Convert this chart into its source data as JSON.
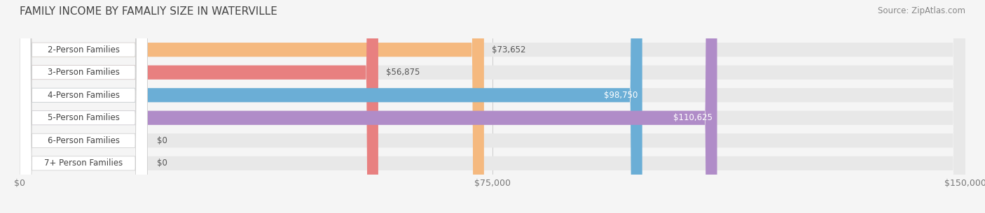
{
  "title": "FAMILY INCOME BY FAMALIY SIZE IN WATERVILLE",
  "source": "Source: ZipAtlas.com",
  "categories": [
    "2-Person Families",
    "3-Person Families",
    "4-Person Families",
    "5-Person Families",
    "6-Person Families",
    "7+ Person Families"
  ],
  "values": [
    73652,
    56875,
    98750,
    110625,
    0,
    0
  ],
  "max_value": 150000,
  "bar_colors": [
    "#F5B97F",
    "#E88080",
    "#6BAED6",
    "#B08CC8",
    "#70C8C0",
    "#B0B8D8"
  ],
  "label_colors": [
    "#555555",
    "#555555",
    "#ffffff",
    "#ffffff",
    "#555555",
    "#555555"
  ],
  "value_labels": [
    "$73,652",
    "$56,875",
    "$98,750",
    "$110,625",
    "$0",
    "$0"
  ],
  "x_ticks": [
    0,
    75000,
    150000
  ],
  "x_tick_labels": [
    "$0",
    "$75,000",
    "$150,000"
  ],
  "background_color": "#f5f5f5",
  "bar_background_color": "#e8e8e8",
  "title_fontsize": 11,
  "source_fontsize": 8.5,
  "tick_fontsize": 9,
  "label_fontsize": 8.5,
  "value_fontsize": 8.5
}
